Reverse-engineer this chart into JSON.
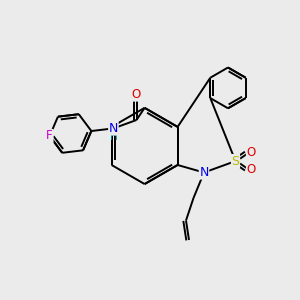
{
  "bg_color": "#ebebeb",
  "bond_lw": 1.4,
  "atom_colors": {
    "F": "#cc00cc",
    "N": "#0000ee",
    "H": "#008888",
    "O": "#dd0000",
    "S": "#bbbb00",
    "C": "#000000"
  },
  "font_size": 8.5
}
